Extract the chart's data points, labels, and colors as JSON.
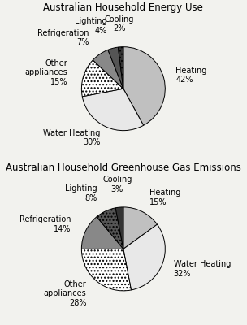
{
  "chart1": {
    "title": "Australian Household Energy Use",
    "labels": [
      "Heating",
      "Water Heating",
      "Other\nappliances",
      "Refrigeration",
      "Lighting",
      "Cooling"
    ],
    "values": [
      42,
      30,
      15,
      7,
      4,
      2
    ],
    "colors": [
      "#c0c0c0",
      "#e8e8e8",
      "#ffffff",
      "#888888",
      "#555555",
      "#333333"
    ],
    "hatches": [
      "",
      "",
      "....",
      "",
      "",
      "...."
    ],
    "startangle": 90
  },
  "chart2": {
    "title": "Australian Household Greenhouse Gas Emissions",
    "labels": [
      "Heating",
      "Water Heating",
      "Other\nappliances",
      "Refrigeration",
      "Lighting",
      "Cooling"
    ],
    "values": [
      15,
      32,
      28,
      14,
      8,
      3
    ],
    "colors": [
      "#c0c0c0",
      "#e8e8e8",
      "#ffffff",
      "#888888",
      "#555555",
      "#333333"
    ],
    "hatches": [
      "",
      "",
      "....",
      "",
      "....",
      ""
    ],
    "startangle": 90
  },
  "bg_color": "#f2f2ee",
  "title_fontsize": 8.5,
  "label_fontsize": 7
}
